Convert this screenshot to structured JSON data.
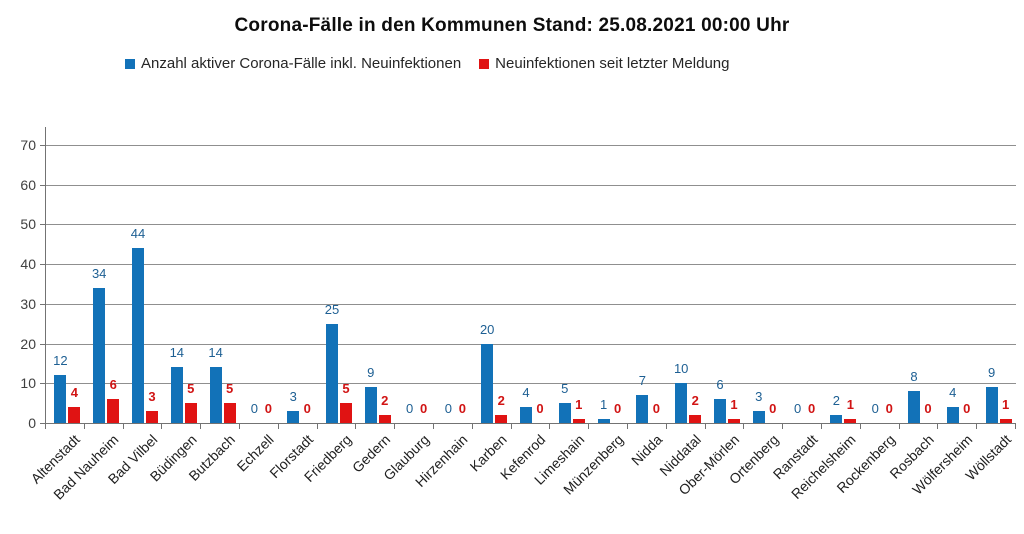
{
  "header": {
    "title": "Corona-Fälle in den Kommunen Stand: 25.08.2021 00:00 Uhr"
  },
  "colors": {
    "active_bar": "#1272b8",
    "new_bar": "#e01313",
    "active_label": "#1d5f93",
    "new_label": "#d11414",
    "gridline": "#8f8f8f",
    "axis": "#737373"
  },
  "chart_data": {
    "type": "bar",
    "title": "Corona-Fälle in den Kommunen Stand: 25.08.2021 00:00 Uhr",
    "categories": [
      "Altenstadt",
      "Bad Nauheim",
      "Bad Vilbel",
      "Büdingen",
      "Butzbach",
      "Echzell",
      "Florstadt",
      "Friedberg",
      "Gedern",
      "Glauburg",
      "Hirzenhain",
      "Karben",
      "Kefenrod",
      "Limeshain",
      "Münzenberg",
      "Nidda",
      "Niddatal",
      "Ober-Mörlen",
      "Ortenberg",
      "Ranstadt",
      "Reichelsheim",
      "Rockenberg",
      "Rosbach",
      "Wölfersheim",
      "Wöllstadt"
    ],
    "series": [
      {
        "name": "Anzahl aktiver Corona-Fälle inkl. Neuinfektionen",
        "color": "#1272b8",
        "label_color": "#1d5f93",
        "values": [
          12,
          34,
          44,
          14,
          14,
          0,
          3,
          25,
          9,
          0,
          0,
          20,
          4,
          5,
          1,
          7,
          10,
          6,
          3,
          0,
          2,
          0,
          8,
          4,
          9
        ]
      },
      {
        "name": "Neuinfektionen seit letzter Meldung",
        "color": "#e01313",
        "label_color": "#d11414",
        "values": [
          4,
          6,
          3,
          5,
          5,
          0,
          0,
          5,
          2,
          0,
          0,
          2,
          0,
          1,
          0,
          0,
          2,
          1,
          0,
          0,
          1,
          0,
          0,
          0,
          1
        ]
      }
    ],
    "xlabel": "",
    "ylabel": "",
    "ylim": [
      0,
      74
    ],
    "yticks": [
      0,
      10,
      20,
      30,
      40,
      50,
      60,
      70
    ],
    "grid": true,
    "legend_position": "top"
  }
}
